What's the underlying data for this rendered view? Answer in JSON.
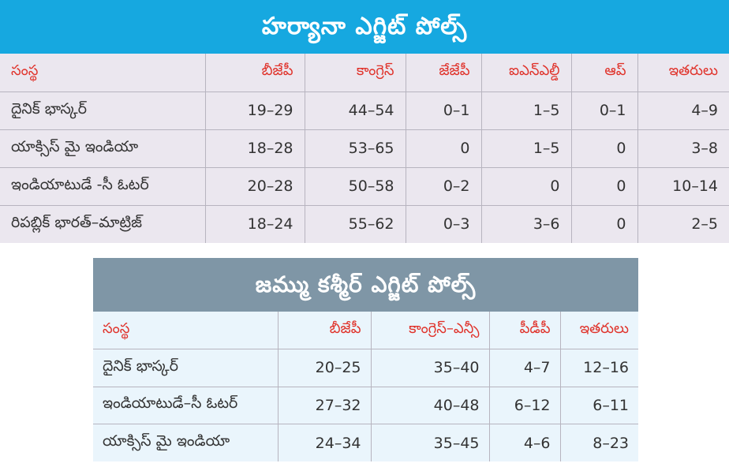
{
  "haryana": {
    "title": "హర్యానా ఎగ్జిట్ పోల్స్",
    "headers": [
      "సంస్థ",
      "బీజేపీ",
      "కాంగ్రెస్",
      "జేజేపీ",
      "ఐఎన్ఎల్డీ",
      "ఆప్",
      "ఇతరులు"
    ],
    "rows": [
      [
        "దైనిక్ భాస్కర్",
        "19–29",
        "44–54",
        "0–1",
        "1–5",
        "0–1",
        "4–9"
      ],
      [
        "యాక్సిస్ మై ఇండియా",
        "18–28",
        "53–65",
        "0",
        "1–5",
        "0",
        "3–8"
      ],
      [
        "ఇండియాటుడే -సీ ఓటర్",
        "20–28",
        "50–58",
        "0–2",
        "0",
        "0",
        "10–14"
      ],
      [
        "రిపబ్లిక్ భారత్–మాట్రిజ్",
        "18–24",
        "55–62",
        "0–3",
        "3–6",
        "0",
        "2–5"
      ]
    ]
  },
  "jk": {
    "title": "జమ్ము కశ్మీర్ ఎగ్జిట్ పోల్స్",
    "headers": [
      "సంస్థ",
      "బీజేపీ",
      "కాంగ్రెస్–ఎన్సీ",
      "పీడీపీ",
      "ఇతరులు"
    ],
    "rows": [
      [
        "దైనిక్ భాస్కర్",
        "20–25",
        "35–40",
        "4–7",
        "12–16"
      ],
      [
        "ఇండియాటుడే–సీ ఓటర్",
        "27–32",
        "40–48",
        "6–12",
        "6–11"
      ],
      [
        "యాక్సిస్ మై ఇండియా",
        "24–34",
        "35–45",
        "4–6",
        "8–23"
      ]
    ]
  }
}
